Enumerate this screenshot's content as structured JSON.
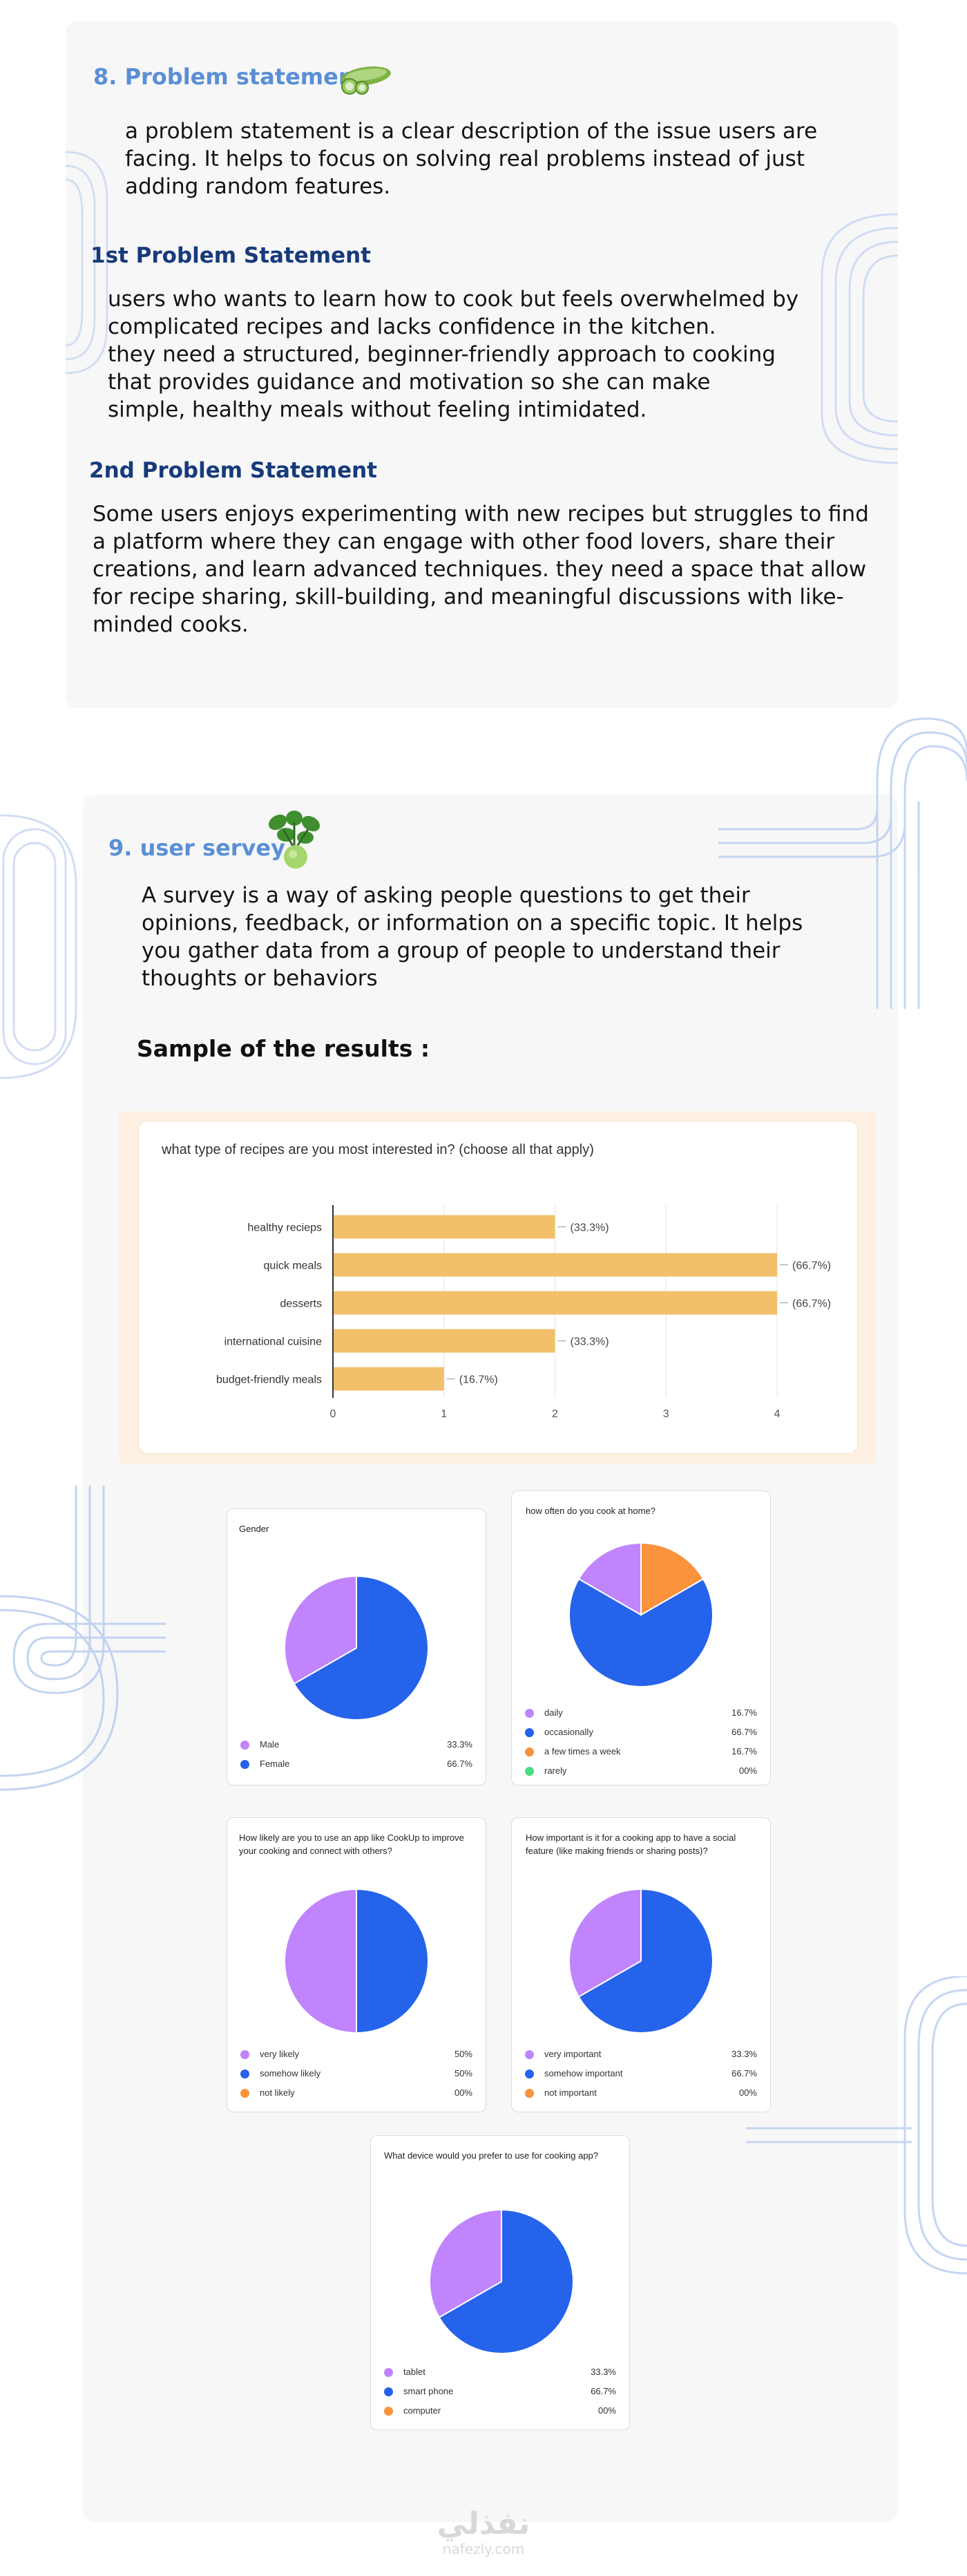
{
  "section8": {
    "title": "8. Problem statement",
    "intro": [
      "a problem statement is a clear description of the issue users are",
      "facing. It helps to focus on solving real problems instead of just",
      "adding random features."
    ],
    "ps1_title": "1st  Problem Statement",
    "ps1_text": [
      "users who wants to learn how to cook but feels overwhelmed by",
      "complicated recipes and lacks confidence in the kitchen.",
      " they need a structured, beginner-friendly approach to cooking",
      " that provides  guidance and motivation so she can make",
      " simple, healthy meals without feeling intimidated."
    ],
    "ps2_title": "2nd  Problem Statement",
    "ps2_text": [
      "Some users enjoys experimenting with new recipes but struggles to find",
      "a platform where they can engage with other food lovers, share their",
      "creations, and learn advanced techniques. they need a space that allow",
      "for recipe sharing, skill-building, and meaningful discussions with like-",
      "minded cooks."
    ]
  },
  "section9": {
    "title": "9. user servey",
    "intro": [
      "A survey is a way of asking people questions to get their",
      "opinions, feedback, or information on a specific topic. It helps",
      "you gather data from a group of people to understand their",
      "thoughts or behaviors"
    ],
    "sample_heading": "Sample of the results :"
  },
  "chart_data": [
    {
      "type": "bar",
      "orientation": "horizontal",
      "title": "what type of recipes are you most interested in? (choose all that apply)",
      "categories": [
        "healthy recieps",
        "quick meals",
        "desserts",
        "international cuisine",
        "budget-friendly meals"
      ],
      "values": [
        2,
        4,
        4,
        2,
        1
      ],
      "data_labels": [
        "(33.3%)",
        "(66.7%)",
        "(66.7%)",
        "(33.3%)",
        "(16.7%)"
      ],
      "xlim": [
        0,
        4
      ],
      "xticks": [
        "0",
        "1",
        "2",
        "3",
        "4"
      ],
      "grid": true,
      "color": "#f2c06b"
    },
    {
      "type": "pie",
      "title": "Gender",
      "labels": [
        "Male",
        "Female"
      ],
      "values": [
        33.3,
        66.7
      ],
      "value_labels": [
        "33.3%",
        "66.7%"
      ],
      "colors": [
        "#c084fc",
        "#2563eb"
      ]
    },
    {
      "type": "pie",
      "title": "how often do you cook at home?",
      "labels": [
        "daily",
        "occasionally",
        "a few times a week",
        "rarely"
      ],
      "values": [
        16.7,
        66.7,
        16.7,
        0
      ],
      "value_labels": [
        "16.7%",
        "66.7%",
        "16.7%",
        "00%"
      ],
      "colors": [
        "#c084fc",
        "#2563eb",
        "#fb923c",
        "#4ade80"
      ]
    },
    {
      "type": "pie",
      "title": "How likely are you to use an app like CookUp to  improve your cooking and connect with others?",
      "labels": [
        "very likely",
        "somehow likely",
        "not likely"
      ],
      "values": [
        50,
        50,
        0
      ],
      "value_labels": [
        "50%",
        "50%",
        "00%"
      ],
      "colors": [
        "#c084fc",
        "#2563eb",
        "#fb923c"
      ]
    },
    {
      "type": "pie",
      "title": "How important is it for a cooking app to have a social feature (like making friends or sharing posts)?",
      "labels": [
        "very important",
        "somehow important",
        "not important"
      ],
      "values": [
        33.3,
        66.7,
        0
      ],
      "value_labels": [
        "33.3%",
        "66.7%",
        "00%"
      ],
      "colors": [
        "#c084fc",
        "#2563eb",
        "#fb923c"
      ]
    },
    {
      "type": "pie",
      "title": "What device would you prefer to use for cooking app?",
      "labels": [
        "tablet",
        "smart phone",
        "computer"
      ],
      "values": [
        33.3,
        66.7,
        0
      ],
      "value_labels": [
        "33.3%",
        "66.7%",
        "00%"
      ],
      "colors": [
        "#c084fc",
        "#2563eb",
        "#fb923c"
      ]
    }
  ],
  "watermark": {
    "arabic": "نفذلي",
    "latin": "nafezly.com"
  }
}
